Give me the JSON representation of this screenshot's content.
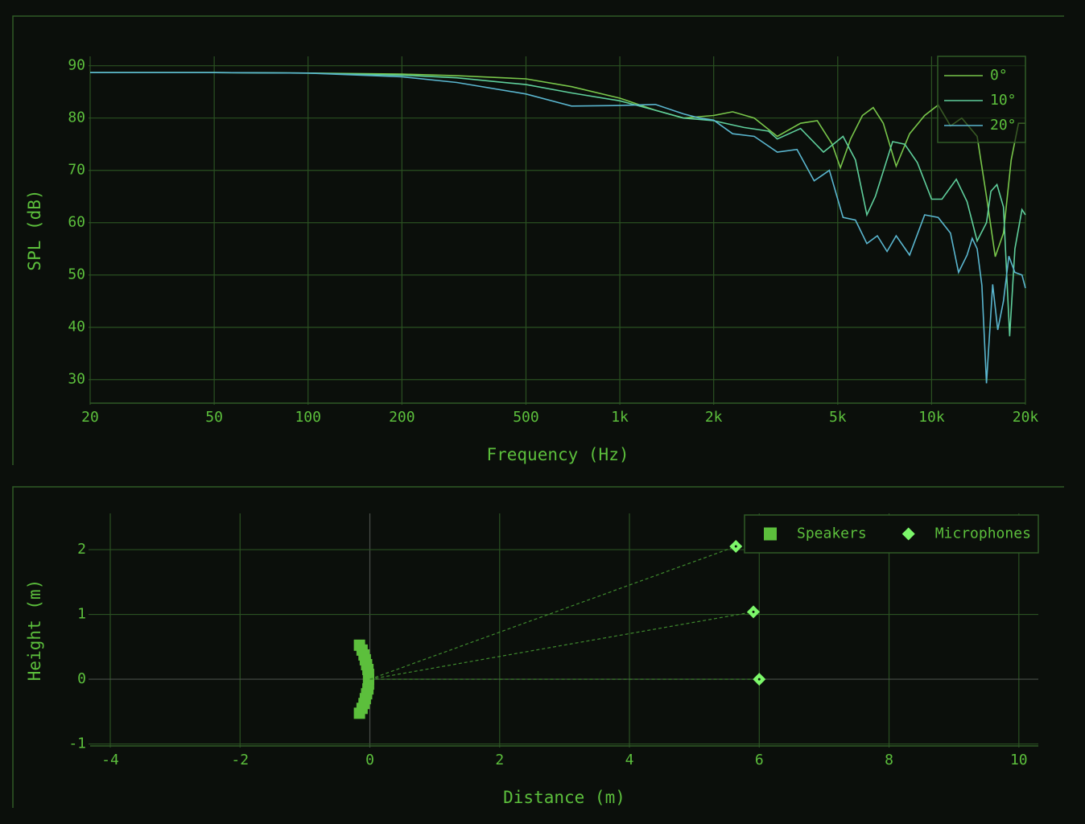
{
  "chart_data": [
    {
      "type": "line",
      "xlabel": "Frequency (Hz)",
      "ylabel": "SPL (dB)",
      "xscale": "log",
      "xlim": [
        20,
        20000
      ],
      "ylim": [
        25.5,
        91.8
      ],
      "xticks": [
        20,
        50,
        100,
        200,
        500,
        {
          "value": 1000,
          "label": "1k"
        },
        {
          "value": 2000,
          "label": "2k"
        },
        {
          "value": 5000,
          "label": "5k"
        },
        {
          "value": 10000,
          "label": "10k"
        },
        {
          "value": 20000,
          "label": "20k"
        }
      ],
      "yticks": [
        30,
        40,
        50,
        60,
        70,
        80,
        90
      ],
      "grid": true,
      "legend": "upper right",
      "series": [
        {
          "name": "0°",
          "color": "#78c64a",
          "x": [
            20,
            50,
            100,
            200,
            300,
            500,
            700,
            1000,
            1300,
            1600,
            2000,
            2300,
            2700,
            3200,
            3800,
            4300,
            4800,
            5100,
            5500,
            6000,
            6500,
            7000,
            7700,
            8500,
            9500,
            10500,
            11500,
            12500,
            14000,
            15000,
            16000,
            17000,
            18000,
            19000,
            20000
          ],
          "values": [
            88.7,
            88.7,
            88.6,
            88.4,
            88.1,
            87.5,
            86,
            83.8,
            81.5,
            80,
            80.5,
            81.2,
            80,
            76.5,
            79,
            79.5,
            75,
            70.5,
            76,
            80.5,
            82,
            79,
            70.8,
            77,
            80.5,
            82.5,
            78.5,
            80,
            76.5,
            65,
            53.5,
            58,
            72,
            79,
            79
          ]
        },
        {
          "name": "10°",
          "color": "#5fcf9c",
          "x": [
            20,
            50,
            100,
            200,
            300,
            500,
            700,
            1000,
            1300,
            1600,
            2000,
            2500,
            3000,
            3200,
            3800,
            4500,
            5200,
            5700,
            6200,
            6600,
            7500,
            8200,
            9000,
            10000,
            10800,
            12000,
            13000,
            14000,
            15000,
            15500,
            16200,
            17000,
            17800,
            18500,
            19500,
            20000
          ],
          "values": [
            88.7,
            88.7,
            88.6,
            88.2,
            87.7,
            86.4,
            84.8,
            83.3,
            81.5,
            80,
            79.5,
            78.2,
            77.5,
            76,
            78,
            73.5,
            76.5,
            72,
            61.5,
            65,
            75.5,
            75,
            71.5,
            64.5,
            64.5,
            68.3,
            64,
            56.5,
            60,
            66,
            67.3,
            63,
            38.3,
            55,
            62.5,
            61.5
          ]
        },
        {
          "name": "20°",
          "color": "#5ab6cf",
          "x": [
            20,
            50,
            100,
            200,
            300,
            500,
            700,
            1000,
            1300,
            1600,
            1800,
            2000,
            2300,
            2700,
            3200,
            3700,
            4200,
            4700,
            5200,
            5700,
            6200,
            6700,
            7200,
            7700,
            8500,
            9500,
            10500,
            11500,
            12200,
            13000,
            13500,
            14000,
            14500,
            15000,
            15700,
            16300,
            17000,
            17700,
            18500,
            19500,
            20000
          ],
          "values": [
            88.7,
            88.7,
            88.6,
            87.9,
            86.8,
            84.6,
            82.3,
            82.4,
            82.6,
            80.8,
            80,
            79.6,
            77,
            76.5,
            73.5,
            74,
            68,
            70,
            61,
            60.5,
            56,
            57.5,
            54.5,
            57.5,
            53.8,
            61.5,
            61,
            58,
            50.5,
            53.8,
            57,
            55,
            48,
            29.3,
            48.2,
            39.5,
            45,
            53.6,
            50.5,
            50,
            47.5
          ]
        }
      ]
    },
    {
      "type": "scatter",
      "xlabel": "Distance (m)",
      "ylabel": "Height (m)",
      "xlim": [
        -4.31,
        10.3
      ],
      "ylim": [
        -1.03,
        2.56
      ],
      "xticks": [
        -4,
        -2,
        0,
        2,
        4,
        6,
        8,
        10
      ],
      "yticks": [
        -1,
        0,
        1,
        2
      ],
      "grid": true,
      "legend": "upper right",
      "series": [
        {
          "name": "Speakers",
          "color": "#5cbf3c",
          "marker": "square",
          "x": [
            -0.16,
            -0.12,
            -0.09,
            -0.07,
            -0.05,
            -0.03,
            -0.02,
            -0.02,
            -0.02,
            -0.03,
            -0.05,
            -0.07,
            -0.09,
            -0.12,
            -0.16
          ],
          "values": [
            -0.525,
            -0.45,
            -0.375,
            -0.3,
            -0.225,
            -0.15,
            -0.075,
            0,
            0.075,
            0.15,
            0.225,
            0.3,
            0.375,
            0.45,
            0.525
          ]
        },
        {
          "name": "Microphones",
          "color": "#7cf76a",
          "marker": "diamond",
          "dashed_rays": true,
          "x": [
            6,
            5.91,
            5.64
          ],
          "values": [
            0,
            1.04,
            2.05
          ]
        }
      ]
    }
  ]
}
